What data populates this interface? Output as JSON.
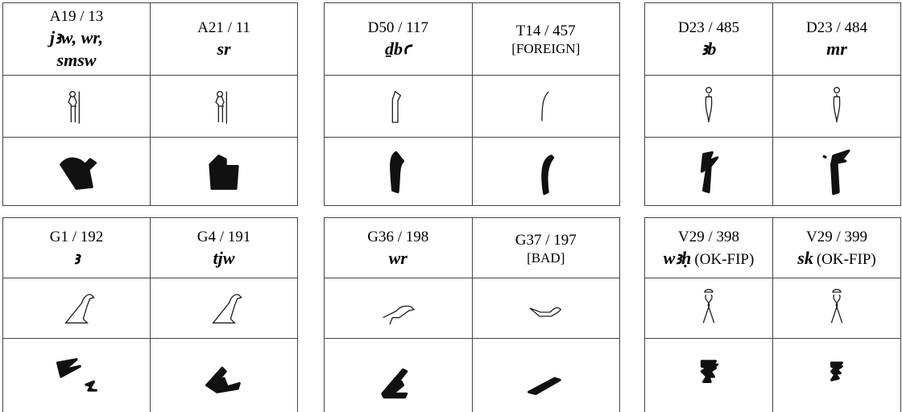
{
  "panels": [
    {
      "cells": [
        {
          "code": "A19 / 13",
          "translit": "jꜣw, wr, smsw"
        },
        {
          "code": "A21 / 11",
          "translit": "sr"
        }
      ]
    },
    {
      "cells": [
        {
          "code": "D50 / 117",
          "translit": "ḏbꜥ"
        },
        {
          "code": "T14 / 457",
          "note": "[FOREIGN]"
        }
      ]
    },
    {
      "cells": [
        {
          "code": "D23 / 485",
          "translit": "ꜣb"
        },
        {
          "code": "D23 / 484",
          "translit": "mr"
        }
      ]
    },
    {
      "cells": [
        {
          "code": "G1 / 192",
          "translit": "ꜣ"
        },
        {
          "code": "G4 / 191",
          "translit": "tjw"
        }
      ]
    },
    {
      "cells": [
        {
          "code": "G36 / 198",
          "translit": "wr"
        },
        {
          "code": "G37 / 197",
          "note": "[BAD]"
        }
      ]
    },
    {
      "cells": [
        {
          "code": "V29 / 398",
          "translit": "wꜣḥ",
          "note": "(OK-FIP)"
        },
        {
          "code": "V29 / 399",
          "translit": "sk",
          "note": "(OK-FIP)"
        }
      ]
    }
  ]
}
